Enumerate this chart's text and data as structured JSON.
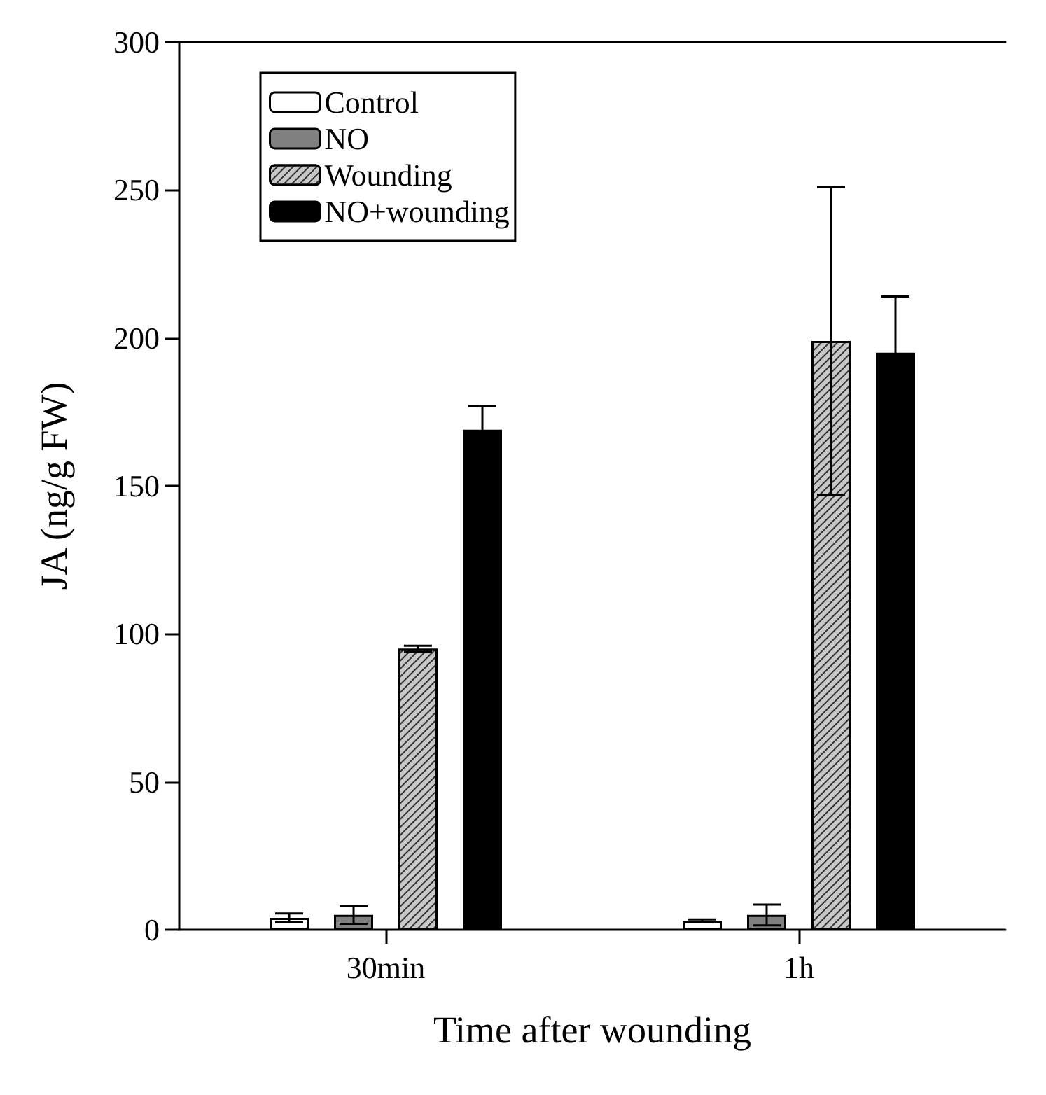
{
  "chart_data": {
    "type": "bar",
    "xlabel": "Time after wounding",
    "ylabel": "JA (ng/g FW)",
    "categories": [
      "30min",
      "1h"
    ],
    "series": [
      {
        "name": "Control",
        "color": "#ffffff",
        "values": [
          4,
          3
        ],
        "errors": [
          1.5,
          0.5
        ]
      },
      {
        "name": "NO",
        "color": "#808080",
        "values": [
          5,
          5
        ],
        "errors": [
          3,
          3.5
        ]
      },
      {
        "name": "Wounding",
        "color": "#c8c8c8",
        "values": [
          95,
          199
        ],
        "errors": [
          1,
          52
        ]
      },
      {
        "name": "NO+wounding",
        "color": "#000000",
        "values": [
          169,
          195
        ],
        "errors": [
          8,
          19
        ]
      }
    ],
    "ylim": [
      0,
      300
    ],
    "yticks": [
      0,
      50,
      100,
      150,
      200,
      250,
      300
    ],
    "grid": false,
    "legend": "top left"
  }
}
